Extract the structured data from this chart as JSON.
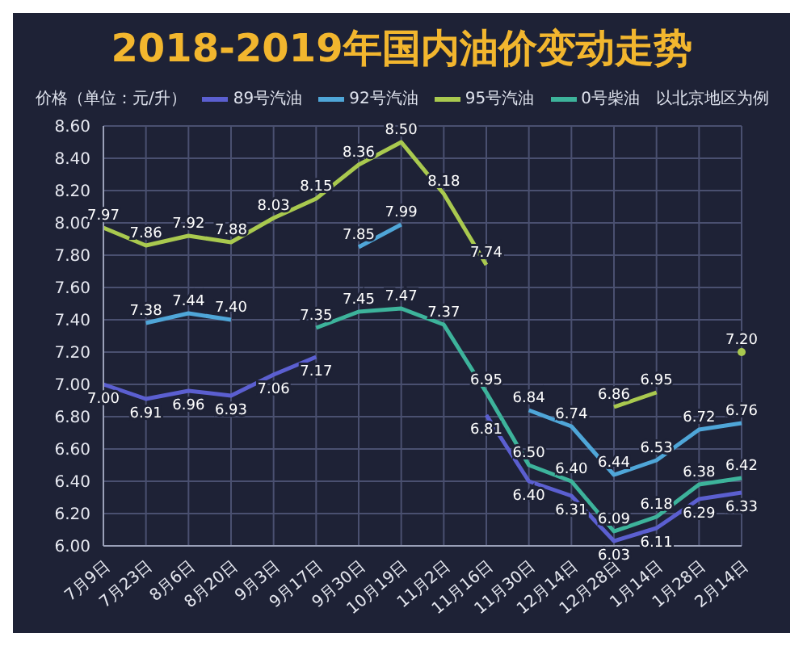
{
  "chart_data": {
    "type": "line",
    "title": "2018-2019年国内油价变动走势",
    "ylabel": "价格（单位：元/升）",
    "annotations": [
      "以北京地区为例"
    ],
    "categories": [
      "7月9日",
      "7月23日",
      "8月6日",
      "8月20日",
      "9月3日",
      "9月17日",
      "9月30日",
      "10月19日",
      "11月2日",
      "11月16日",
      "11月30日",
      "12月14日",
      "12月28日",
      "1月14日",
      "1月28日",
      "2月14日"
    ],
    "series": [
      {
        "name": "89号汽油",
        "color": "#5b5fd0",
        "values": [
          7.0,
          6.91,
          6.96,
          6.93,
          7.06,
          7.17,
          null,
          null,
          null,
          6.81,
          6.4,
          6.31,
          6.03,
          6.11,
          6.29,
          6.33
        ],
        "value_labels": [
          "7.00",
          "6.91",
          "6.96",
          "6.93",
          "7.06",
          "7.17",
          null,
          null,
          null,
          "6.81",
          "6.40",
          "6.31",
          "6.03",
          "6.11",
          "6.29",
          "6.33"
        ]
      },
      {
        "name": "92号汽油",
        "color": "#4fa6d8",
        "values": [
          null,
          7.38,
          7.44,
          7.4,
          null,
          null,
          7.85,
          7.99,
          null,
          null,
          6.84,
          6.74,
          6.44,
          6.53,
          6.72,
          6.76
        ],
        "value_labels": [
          null,
          "7.38",
          "7.44",
          "7.40",
          null,
          null,
          "7.85",
          "7.99",
          null,
          null,
          "6.84",
          "6.74",
          "6.44",
          "6.53",
          "6.72",
          "6.76"
        ]
      },
      {
        "name": "95号汽油",
        "color": "#a9c94f",
        "values": [
          7.97,
          7.86,
          7.92,
          7.88,
          8.03,
          8.15,
          8.36,
          8.5,
          8.18,
          7.74,
          null,
          null,
          6.86,
          6.95,
          null,
          7.2
        ],
        "value_labels": [
          "7.97",
          "7.86",
          "7.92",
          "7.88",
          "8.03",
          "8.15",
          "8.36",
          "8.50",
          "8.18",
          "7.74",
          null,
          null,
          "6.86",
          "6.95",
          null,
          "7.20"
        ]
      },
      {
        "name": "0号柴油",
        "color": "#3db39b",
        "values": [
          null,
          null,
          null,
          null,
          null,
          7.35,
          7.45,
          7.47,
          7.37,
          6.95,
          6.5,
          6.4,
          6.09,
          6.18,
          6.38,
          6.42
        ],
        "value_labels": [
          null,
          null,
          null,
          null,
          null,
          "7.35",
          "7.45",
          "7.47",
          "7.37",
          "6.95",
          "6.50",
          "6.40",
          "6.09",
          "6.18",
          "6.38",
          "6.42"
        ]
      }
    ],
    "ylim": [
      6.0,
      8.6
    ],
    "yticks": [
      {
        "value": 6.0,
        "label": "6.00"
      },
      {
        "value": 6.2,
        "label": "6.20"
      },
      {
        "value": 6.4,
        "label": "6.40"
      },
      {
        "value": 6.6,
        "label": "6.60"
      },
      {
        "value": 6.8,
        "label": "6.80"
      },
      {
        "value": 7.0,
        "label": "7.00"
      },
      {
        "value": 7.2,
        "label": "7.20"
      },
      {
        "value": 7.4,
        "label": "7.40"
      },
      {
        "value": 7.6,
        "label": "7.60"
      },
      {
        "value": 7.8,
        "label": "7.80"
      },
      {
        "value": 8.0,
        "label": "8.00"
      },
      {
        "value": 8.2,
        "label": "8.20"
      },
      {
        "value": 8.4,
        "label": "8.40"
      },
      {
        "value": 8.6,
        "label": "8.60"
      }
    ],
    "grid": true,
    "legend": "top",
    "marker": "none",
    "line_style": "solid"
  }
}
